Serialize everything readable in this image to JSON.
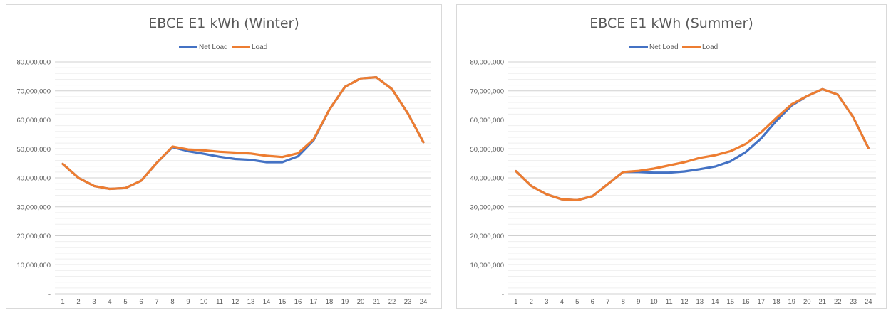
{
  "colors": {
    "net_load": "#4472C4",
    "load": "#ED7D31",
    "grid": "#d9d9d9",
    "text": "#595959"
  },
  "chart_data": [
    {
      "type": "line",
      "title": "EBCE E1 kWh (Winter)",
      "legend": "top-center",
      "grid": true,
      "ylim": [
        0,
        80000000
      ],
      "y_tick_labels": [
        "-",
        "10,000,000",
        "20,000,000",
        "30,000,000",
        "40,000,000",
        "50,000,000",
        "60,000,000",
        "70,000,000",
        "80,000,000"
      ],
      "categories": [
        "1",
        "2",
        "3",
        "4",
        "5",
        "6",
        "7",
        "8",
        "9",
        "10",
        "11",
        "12",
        "13",
        "14",
        "15",
        "16",
        "17",
        "18",
        "19",
        "20",
        "21",
        "22",
        "23",
        "24"
      ],
      "series": [
        {
          "name": "Net Load",
          "color": "#4472C4",
          "values": [
            44800000,
            40000000,
            37200000,
            36200000,
            36500000,
            39000000,
            45200000,
            50600000,
            49200000,
            48300000,
            47300000,
            46500000,
            46200000,
            45400000,
            45400000,
            47400000,
            53000000,
            63500000,
            71400000,
            74300000,
            74700000,
            70600000,
            62300000,
            52300000
          ]
        },
        {
          "name": "Load",
          "color": "#ED7D31",
          "values": [
            44800000,
            40000000,
            37200000,
            36200000,
            36500000,
            39000000,
            45200000,
            50800000,
            49800000,
            49500000,
            49000000,
            48700000,
            48400000,
            47600000,
            47200000,
            48500000,
            53300000,
            63500000,
            71400000,
            74300000,
            74700000,
            70600000,
            62300000,
            52300000
          ]
        }
      ]
    },
    {
      "type": "line",
      "title": "EBCE E1 kWh (Summer)",
      "legend": "top-center",
      "grid": true,
      "ylim": [
        0,
        80000000
      ],
      "y_tick_labels": [
        "-",
        "10,000,000",
        "20,000,000",
        "30,000,000",
        "40,000,000",
        "50,000,000",
        "60,000,000",
        "70,000,000",
        "80,000,000"
      ],
      "categories": [
        "1",
        "2",
        "3",
        "4",
        "5",
        "6",
        "7",
        "8",
        "9",
        "10",
        "11",
        "12",
        "13",
        "14",
        "15",
        "16",
        "17",
        "18",
        "19",
        "20",
        "21",
        "22",
        "23",
        "24"
      ],
      "series": [
        {
          "name": "Net Load",
          "color": "#4472C4",
          "values": [
            42300000,
            37200000,
            34300000,
            32600000,
            32300000,
            33700000,
            37900000,
            42000000,
            42000000,
            41800000,
            41800000,
            42200000,
            43000000,
            43900000,
            45700000,
            48900000,
            53600000,
            59700000,
            65000000,
            68200000,
            70600000,
            68700000,
            61000000,
            50300000
          ]
        },
        {
          "name": "Load",
          "color": "#ED7D31",
          "values": [
            42300000,
            37200000,
            34300000,
            32600000,
            32300000,
            33700000,
            37900000,
            42000000,
            42400000,
            43200000,
            44300000,
            45400000,
            46900000,
            47800000,
            49200000,
            51700000,
            55700000,
            60700000,
            65400000,
            68200000,
            70600000,
            68700000,
            61000000,
            50300000
          ]
        }
      ]
    }
  ]
}
